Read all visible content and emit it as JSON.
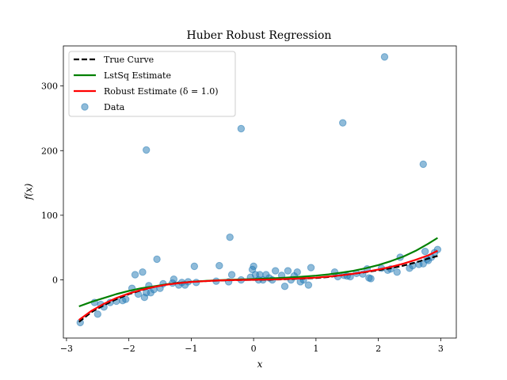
{
  "chart_data": {
    "type": "scatter",
    "title": "Huber Robust Regression",
    "xlabel": "x",
    "ylabel": "f(x)",
    "xlim": [
      -3.05,
      3.25
    ],
    "ylim": [
      -90,
      362
    ],
    "xticks": [
      -3,
      -2,
      -1,
      0,
      1,
      2,
      3
    ],
    "xtick_labels": [
      "−3",
      "−2",
      "−1",
      "0",
      "1",
      "2",
      "3"
    ],
    "yticks": [
      0,
      100,
      200,
      300
    ],
    "ytick_labels": [
      "0",
      "100",
      "200",
      "300"
    ],
    "grid": false,
    "legend_position": "top-left",
    "legend": [
      {
        "label": "True Curve",
        "kind": "line",
        "color": "#000000",
        "dashed": true
      },
      {
        "label": "LstSq Estimate",
        "kind": "line",
        "color": "#008000",
        "dashed": false
      },
      {
        "label": "Robust Estimate (δ = 1.0)",
        "kind": "line",
        "color": "#ff0000",
        "dashed": false
      },
      {
        "label": "Data",
        "kind": "marker",
        "color": "#1f77b4",
        "dashed": false
      }
    ],
    "series": [
      {
        "name": "True Curve",
        "type": "line",
        "color": "#000000",
        "dashed": true,
        "x": [
          -2.8,
          -2.6,
          -2.4,
          -2.2,
          -2.0,
          -1.8,
          -1.6,
          -1.4,
          -1.2,
          -1.0,
          -0.8,
          -0.6,
          -0.4,
          -0.2,
          0.0,
          0.2,
          0.4,
          0.6,
          0.8,
          1.0,
          1.2,
          1.4,
          1.6,
          1.8,
          2.0,
          2.2,
          2.4,
          2.6,
          2.8,
          2.95
        ],
        "y": [
          -65,
          -50,
          -39,
          -30,
          -22,
          -16,
          -11,
          -7,
          -4.5,
          -3,
          -2,
          -1.2,
          -0.6,
          -0.2,
          0,
          0.2,
          0.6,
          1.2,
          2,
          3,
          4.5,
          7,
          9.5,
          12,
          15,
          18,
          22,
          27,
          33,
          37
        ]
      },
      {
        "name": "LstSq Estimate",
        "type": "line",
        "color": "#008000",
        "dashed": false,
        "x": [
          -2.8,
          -2.6,
          -2.4,
          -2.2,
          -2.0,
          -1.8,
          -1.6,
          -1.4,
          -1.2,
          -1.0,
          -0.8,
          -0.6,
          -0.4,
          -0.2,
          0.0,
          0.2,
          0.4,
          0.6,
          0.8,
          1.0,
          1.2,
          1.4,
          1.6,
          1.8,
          2.0,
          2.2,
          2.4,
          2.6,
          2.8,
          2.95
        ],
        "y": [
          -41,
          -34,
          -28,
          -22,
          -17,
          -13,
          -10,
          -7,
          -5,
          -3,
          -1.8,
          -0.7,
          0,
          0.6,
          1.2,
          2,
          2.8,
          3.8,
          5,
          6.5,
          8.5,
          11,
          14,
          18,
          23,
          29,
          36,
          45,
          56,
          65
        ]
      },
      {
        "name": "Robust Estimate (δ = 1.0)",
        "type": "line",
        "color": "#ff0000",
        "dashed": false,
        "x": [
          -2.8,
          -2.6,
          -2.4,
          -2.2,
          -2.0,
          -1.8,
          -1.6,
          -1.4,
          -1.2,
          -1.0,
          -0.8,
          -0.6,
          -0.4,
          -0.2,
          0.0,
          0.2,
          0.4,
          0.6,
          0.8,
          1.0,
          1.2,
          1.4,
          1.6,
          1.8,
          2.0,
          2.2,
          2.4,
          2.6,
          2.8,
          2.95
        ],
        "y": [
          -62,
          -48,
          -37,
          -28,
          -21,
          -15.5,
          -11,
          -7.5,
          -5,
          -3.2,
          -2,
          -1.1,
          -0.5,
          -0.1,
          0.1,
          0.4,
          0.9,
          1.6,
          2.5,
          3.5,
          5,
          7,
          9.5,
          12.5,
          16,
          20,
          25,
          31,
          38,
          45
        ]
      },
      {
        "name": "Data",
        "type": "scatter",
        "color": "#1f77b4",
        "x": [
          -2.78,
          -2.55,
          -2.5,
          -2.45,
          -2.4,
          -2.3,
          -2.2,
          -2.1,
          -2.05,
          -1.95,
          -1.9,
          -1.85,
          -1.78,
          -1.75,
          -1.72,
          -1.68,
          -1.65,
          -1.6,
          -1.55,
          -1.5,
          -1.45,
          -1.3,
          -1.28,
          -1.2,
          -1.15,
          -1.1,
          -1.05,
          -0.95,
          -0.92,
          -0.6,
          -0.55,
          -0.4,
          -0.38,
          -0.35,
          -0.2,
          -0.05,
          -0.02,
          0.0,
          0.03,
          0.08,
          0.1,
          0.15,
          0.2,
          0.25,
          0.3,
          0.35,
          0.45,
          0.5,
          0.55,
          0.6,
          0.65,
          0.7,
          0.75,
          0.8,
          0.88,
          0.92,
          1.3,
          1.35,
          1.45,
          1.5,
          1.55,
          1.65,
          1.75,
          1.82,
          1.85,
          1.88,
          2.05,
          2.15,
          2.2,
          2.3,
          2.35,
          2.5,
          2.55,
          2.65,
          2.72,
          2.75,
          2.78,
          2.8,
          2.85,
          2.9,
          2.95,
          -1.72,
          -0.2,
          1.43,
          2.1,
          2.72
        ],
        "y": [
          -66,
          -35,
          -53,
          -38,
          -42,
          -35,
          -33,
          -32,
          -30,
          -13,
          8,
          -22,
          12,
          -27,
          -20,
          -9,
          -20,
          -15,
          32,
          -13,
          -6,
          -5,
          1,
          -8,
          -4,
          -8,
          -3,
          21,
          -4,
          -2,
          22,
          -3,
          66,
          8,
          0,
          4,
          16,
          21,
          8,
          0,
          8,
          0,
          8,
          3,
          0,
          14,
          7,
          -10,
          14,
          0,
          6,
          12,
          -3,
          0,
          -8,
          19,
          12,
          5,
          7,
          6,
          5,
          10,
          9,
          17,
          3,
          2,
          18,
          15,
          17,
          12,
          35,
          18,
          22,
          24,
          25,
          44,
          32,
          30,
          35,
          42,
          47,
          201,
          234,
          243,
          345,
          179
        ]
      }
    ]
  }
}
